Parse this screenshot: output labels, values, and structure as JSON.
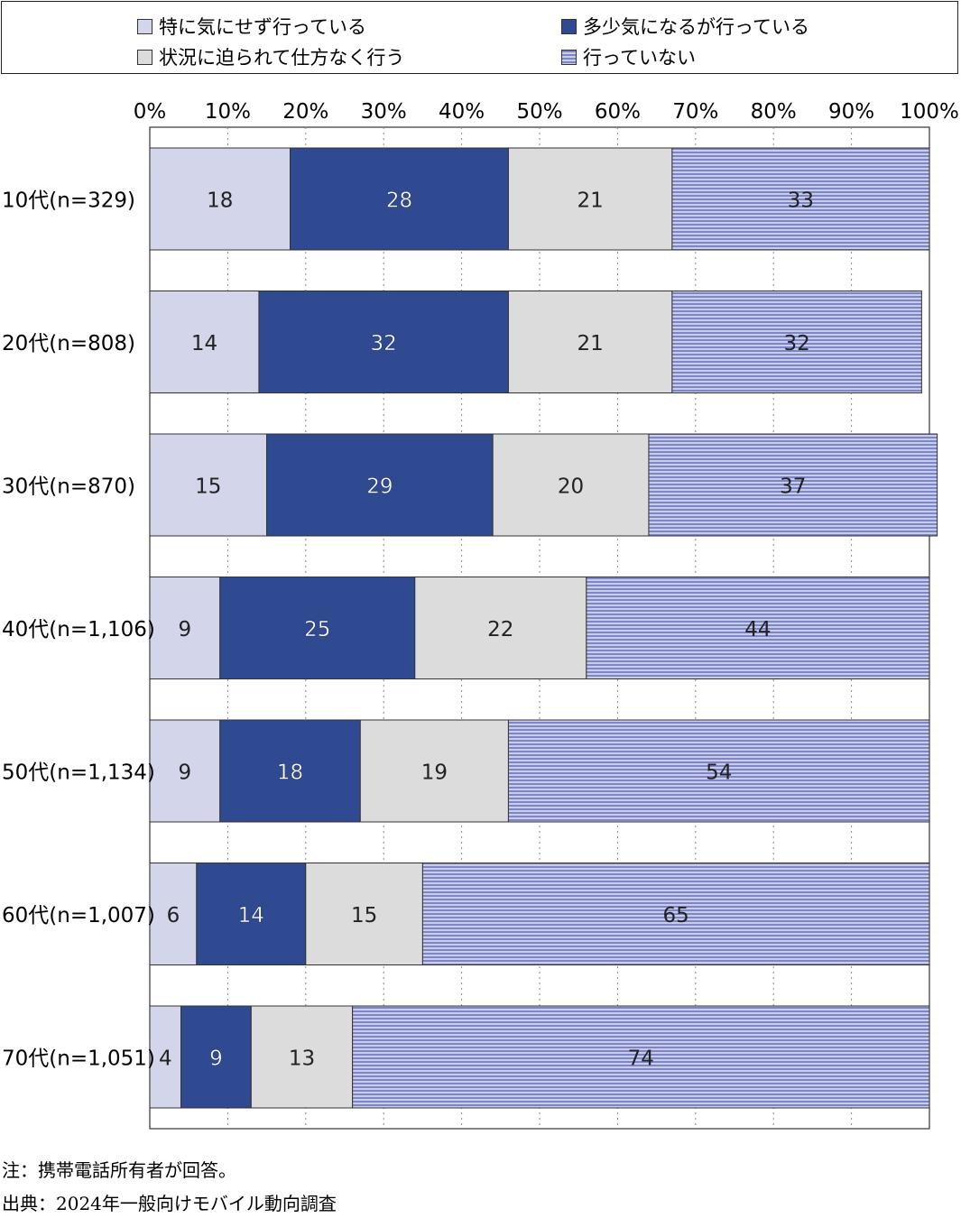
{
  "legend": [
    {
      "label": "特に気にせず行っている",
      "color": "#d3d6ea"
    },
    {
      "label": "多少気になるが行っている",
      "color": "#2f4a91"
    },
    {
      "label": "状況に迫られて仕方なく行う",
      "color": "#dcdcdc"
    },
    {
      "label": "行っていない",
      "color": "striped"
    }
  ],
  "chart_data": {
    "type": "bar",
    "orientation": "horizontal",
    "stacked": true,
    "unit": "%",
    "xlim": [
      0,
      100
    ],
    "x_ticks": [
      "0%",
      "10%",
      "20%",
      "30%",
      "40%",
      "50%",
      "60%",
      "70%",
      "80%",
      "90%",
      "100%"
    ],
    "grid": true,
    "legend_position": "top",
    "categories": [
      "10代(n=329)",
      "20代(n=808)",
      "30代(n=870)",
      "40代(n=1,106)",
      "50代(n=1,134)",
      "60代(n=1,007)",
      "70代(n=1,051)"
    ],
    "series": [
      {
        "name": "特に気にせず行っている",
        "values": [
          18,
          14,
          15,
          9,
          9,
          6,
          4
        ]
      },
      {
        "name": "多少気になるが行っている",
        "values": [
          28,
          32,
          29,
          25,
          18,
          14,
          9
        ]
      },
      {
        "name": "状況に迫られて仕方なく行う",
        "values": [
          21,
          21,
          20,
          22,
          19,
          15,
          13
        ]
      },
      {
        "name": "行っていない",
        "values": [
          33,
          32,
          37,
          44,
          54,
          65,
          74
        ]
      }
    ],
    "colors": [
      "#d3d6ea",
      "#2f4a91",
      "#dcdcdc",
      "#8d96cc"
    ]
  },
  "notes": {
    "note": "注：携帯電話所有者が回答。",
    "source": "出典：2024年一般向けモバイル動向調査"
  }
}
